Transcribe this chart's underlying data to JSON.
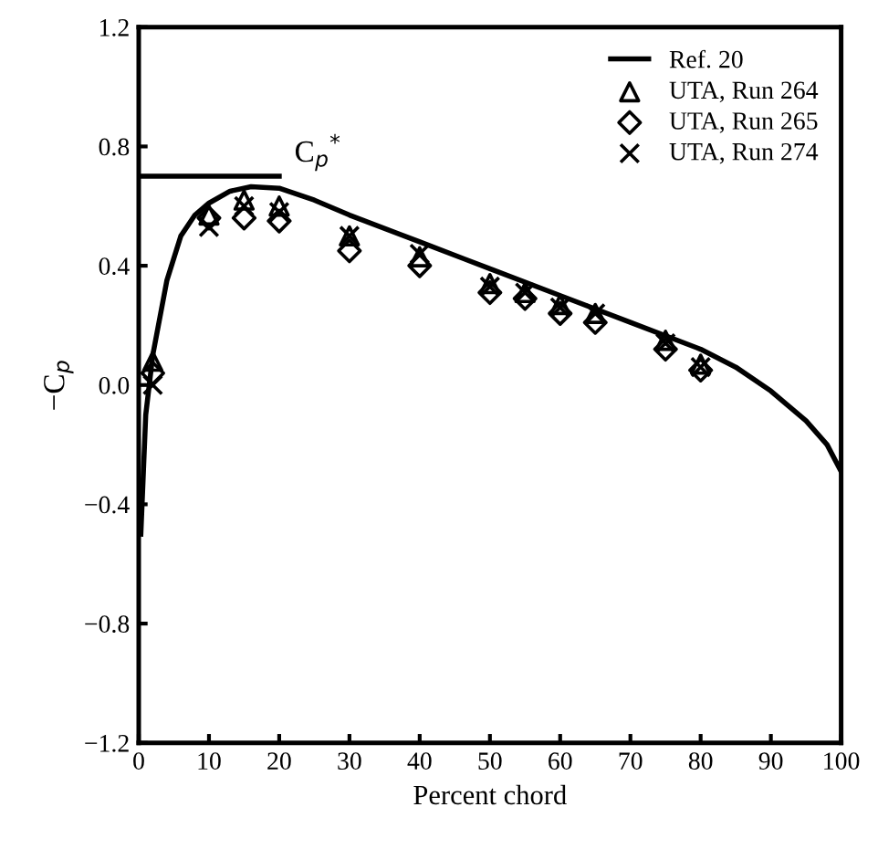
{
  "chart_data": {
    "type": "scatter",
    "xlabel": "Percent chord",
    "ylabel": "−C$_{p}$",
    "xlim": [
      0,
      100
    ],
    "ylim": [
      -1.2,
      1.2
    ],
    "xticks": [
      0,
      10,
      20,
      30,
      40,
      50,
      60,
      70,
      80,
      90,
      100
    ],
    "yticks": [
      {
        "value": -1.2,
        "label": "−1.2"
      },
      {
        "value": -0.8,
        "label": "−0.8"
      },
      {
        "value": -0.4,
        "label": "−0.4"
      },
      {
        "value": 0,
        "label": "0.0"
      },
      {
        "value": 0.4,
        "label": "0.4"
      },
      {
        "value": 0.8,
        "label": "0.8"
      },
      {
        "value": 1.2,
        "label": "1.2"
      }
    ],
    "grid": false,
    "legend": "top right",
    "annotations": [
      {
        "text": "C$_{p}$$^{*}$",
        "x": 20,
        "y": 0.7
      }
    ],
    "series": [
      {
        "name": "Ref. 20",
        "type": "line",
        "marker": "none",
        "line_style": "solid",
        "color": "#000000",
        "x": [
          0.3,
          1,
          2,
          4,
          6,
          8,
          10,
          13,
          16,
          20,
          25,
          30,
          40,
          50,
          60,
          70,
          80,
          85,
          90,
          95,
          98,
          100
        ],
        "values": [
          -0.5,
          -0.1,
          0.1,
          0.35,
          0.5,
          0.57,
          0.61,
          0.65,
          0.665,
          0.66,
          0.62,
          0.57,
          0.48,
          0.39,
          0.3,
          0.21,
          0.12,
          0.06,
          -0.02,
          -0.12,
          -0.2,
          -0.29
        ]
      },
      {
        "type": "line",
        "marker": "none",
        "line_style": "solid",
        "color": "#000000",
        "x": [
          0,
          20
        ],
        "values": [
          0.7,
          0.7
        ]
      },
      {
        "name": "UTA, Run 264",
        "marker": "triangle",
        "color": "#000000",
        "x": [
          2,
          10,
          15,
          20,
          30,
          40,
          50,
          55,
          60,
          65,
          75,
          80
        ],
        "values": [
          0.08,
          0.57,
          0.62,
          0.6,
          0.5,
          0.43,
          0.34,
          0.31,
          0.27,
          0.24,
          0.15,
          0.07
        ]
      },
      {
        "name": "UTA, Run 265",
        "marker": "diamond",
        "color": "#000000",
        "x": [
          2,
          10,
          15,
          20,
          30,
          40,
          50,
          55,
          60,
          65,
          75,
          80
        ],
        "values": [
          0.04,
          0.56,
          0.56,
          0.55,
          0.45,
          0.4,
          0.31,
          0.29,
          0.24,
          0.21,
          0.12,
          0.05
        ]
      },
      {
        "name": "UTA, Run 274",
        "marker": "cross",
        "color": "#000000",
        "x": [
          2,
          10,
          15,
          20,
          30,
          40,
          50,
          55,
          60,
          65,
          75,
          80
        ],
        "values": [
          0.0,
          0.53,
          0.6,
          0.58,
          0.5,
          0.44,
          0.33,
          0.31,
          0.26,
          0.24,
          0.14,
          0.06
        ]
      }
    ]
  }
}
